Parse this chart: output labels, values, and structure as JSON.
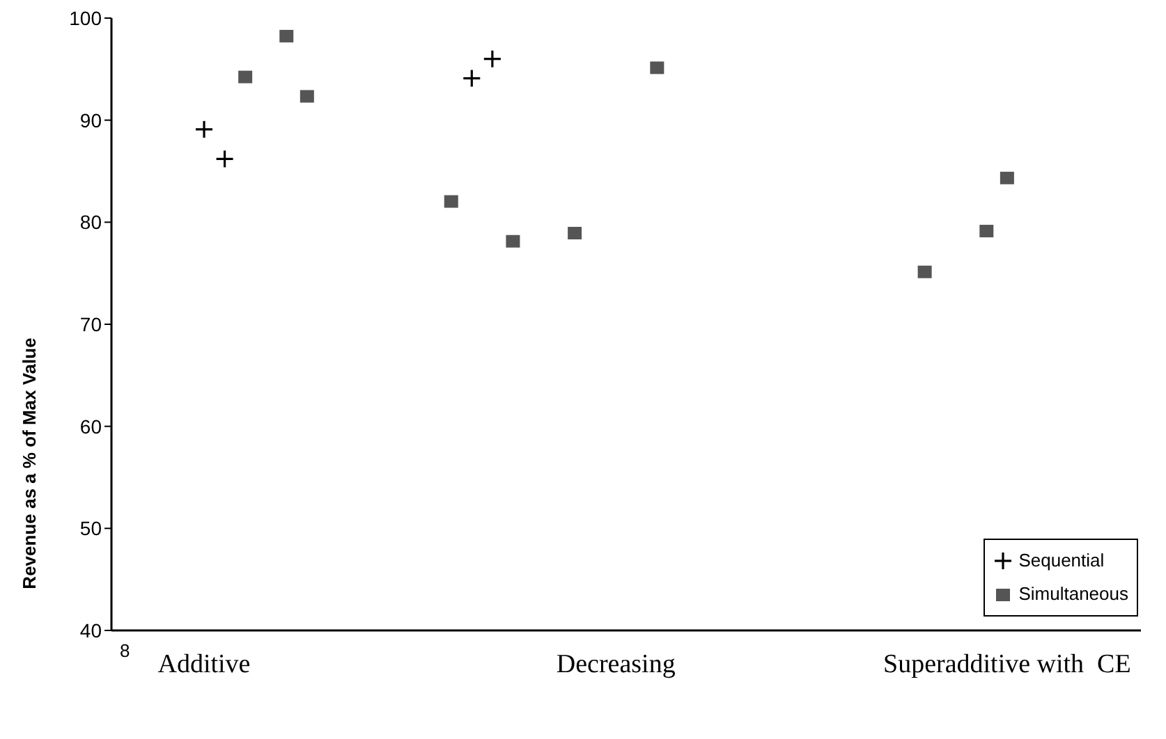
{
  "chart_data": {
    "type": "scatter",
    "ylabel": "Revenue as a % of Max Value",
    "annotations": [
      "8"
    ],
    "categories": [
      null,
      null,
      null,
      null,
      "Additive",
      null,
      null,
      null,
      null,
      null,
      null,
      null,
      null,
      null,
      null,
      null,
      null,
      null,
      null,
      null,
      null,
      null,
      null,
      null,
      "Decreasing",
      null,
      null,
      null,
      null,
      null,
      null,
      null,
      null,
      null,
      null,
      null,
      null,
      null,
      null,
      null,
      null,
      null,
      null,
      "Superadditive with  CE",
      null,
      null,
      null,
      null,
      null,
      null
    ],
    "ylim": [
      40,
      100
    ],
    "yticks": [
      40,
      50,
      60,
      70,
      80,
      90,
      100
    ],
    "grid": false,
    "legend": "bottom right",
    "series": [
      {
        "name": "Sequential",
        "color": "#000000",
        "marker": "cross",
        "values": [
          null,
          null,
          null,
          null,
          89.1,
          86.2,
          null,
          null,
          null,
          null,
          null,
          null,
          null,
          null,
          null,
          null,
          null,
          94.1,
          96.0,
          null,
          null,
          null,
          null,
          null,
          null,
          null,
          null,
          null,
          null,
          null,
          null,
          null,
          null,
          null,
          null,
          null,
          null,
          null,
          null,
          null,
          null,
          null,
          null,
          null,
          null,
          null,
          null,
          null,
          null,
          null
        ]
      },
      {
        "name": "Simultaneous",
        "color": "#555555",
        "marker": "square",
        "values": [
          null,
          null,
          null,
          null,
          null,
          null,
          94.3,
          null,
          98.3,
          92.4,
          null,
          null,
          null,
          null,
          null,
          null,
          82.1,
          null,
          null,
          78.2,
          null,
          null,
          79.0,
          null,
          null,
          null,
          95.2,
          null,
          null,
          null,
          null,
          null,
          null,
          null,
          null,
          null,
          null,
          null,
          null,
          75.2,
          null,
          null,
          79.2,
          84.4,
          null,
          null,
          null,
          null,
          null,
          null
        ]
      }
    ]
  }
}
